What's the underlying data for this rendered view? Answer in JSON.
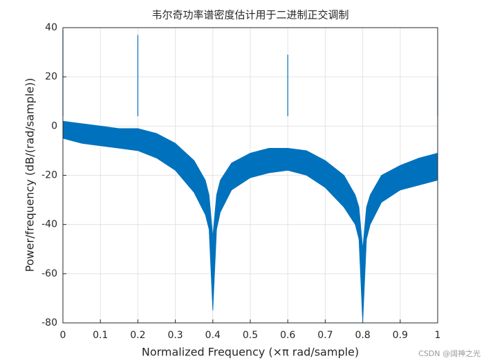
{
  "chart_data": {
    "type": "band",
    "title": "韦尔奇功率谱密度估计用于二进制正交调制",
    "x_label": "Normalized Frequency  (×π rad/sample)",
    "y_label": "Power/frequency (dB/(rad/sample))",
    "watermark": "CSDN @阔神之光",
    "color": "#0072bd",
    "grid": true,
    "x": [
      0,
      0.05,
      0.1,
      0.15,
      0.2,
      0.25,
      0.3,
      0.35,
      0.38,
      0.39,
      0.4,
      0.41,
      0.42,
      0.45,
      0.5,
      0.55,
      0.6,
      0.65,
      0.7,
      0.75,
      0.78,
      0.79,
      0.8,
      0.81,
      0.82,
      0.85,
      0.9,
      0.95,
      1
    ],
    "upper": [
      2,
      1,
      0,
      -1,
      -1,
      -3,
      -7,
      -14,
      -22,
      -28,
      -45,
      -28,
      -22,
      -15,
      -11,
      -9,
      -9,
      -10,
      -14,
      -20,
      -28,
      -33,
      -50,
      -33,
      -28,
      -20,
      -16,
      -13,
      -11
    ],
    "lower": [
      -5,
      -7,
      -8,
      -9,
      -10,
      -13,
      -18,
      -27,
      -36,
      -42,
      -75,
      -42,
      -35,
      -26,
      -21,
      -19,
      -18,
      -20,
      -25,
      -33,
      -40,
      -46,
      -80,
      -46,
      -40,
      -31,
      -26,
      -24,
      -22
    ],
    "spikes": {
      "x": [
        0,
        0.2,
        0.6,
        1
      ],
      "values": [
        39,
        37,
        29,
        20
      ]
    },
    "xlim": [
      0,
      1
    ],
    "ylim": [
      -80,
      40
    ],
    "xticks": [
      0,
      0.1,
      0.2,
      0.3,
      0.4,
      0.5,
      0.6,
      0.7,
      0.8,
      0.9,
      1
    ],
    "yticks": [
      -80,
      -60,
      -40,
      -20,
      0,
      20,
      40
    ]
  }
}
